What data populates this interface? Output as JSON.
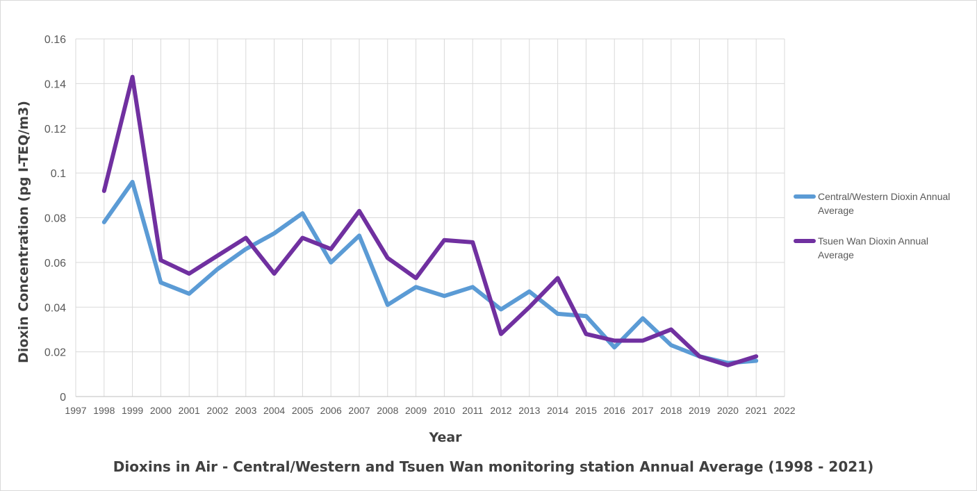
{
  "chart_data": {
    "type": "line",
    "title": "Dioxins in Air - Central/Western and Tsuen Wan monitoring station Annual Average (1998 - 2021)",
    "xlabel": "Year",
    "ylabel": "Dioxin Concentration (pg I-TEQ/m3)",
    "xlim": [
      1997,
      2022
    ],
    "ylim": [
      0,
      0.16
    ],
    "x_ticks": [
      "1997",
      "1998",
      "1999",
      "2000",
      "2001",
      "2002",
      "2003",
      "2004",
      "2005",
      "2006",
      "2007",
      "2008",
      "2009",
      "2010",
      "2011",
      "2012",
      "2013",
      "2014",
      "2015",
      "2016",
      "2017",
      "2018",
      "2019",
      "2020",
      "2021",
      "2022"
    ],
    "y_ticks": [
      "0",
      "0.02",
      "0.04",
      "0.06",
      "0.08",
      "0.1",
      "0.12",
      "0.14",
      "0.16"
    ],
    "grid": true,
    "legend_position": "right",
    "x": [
      1998,
      1999,
      2000,
      2001,
      2002,
      2003,
      2004,
      2005,
      2006,
      2007,
      2008,
      2009,
      2010,
      2011,
      2012,
      2013,
      2014,
      2015,
      2016,
      2017,
      2018,
      2019,
      2020,
      2021
    ],
    "series": [
      {
        "name": "Central/Western Dioxin Annual Average",
        "legend_lines": [
          "Central/Western Dioxin Annual",
          "Average"
        ],
        "color": "#5b9bd5",
        "values": [
          0.078,
          0.096,
          0.051,
          0.046,
          0.057,
          0.066,
          0.073,
          0.082,
          0.06,
          0.072,
          0.041,
          0.049,
          0.045,
          0.049,
          0.039,
          0.047,
          0.037,
          0.036,
          0.022,
          0.035,
          0.023,
          0.018,
          0.015,
          0.016
        ]
      },
      {
        "name": "Tsuen Wan Dioxin Annual Average",
        "legend_lines": [
          "Tsuen Wan Dioxin Annual",
          "Average"
        ],
        "color": "#7030a0",
        "values": [
          0.092,
          0.143,
          0.061,
          0.055,
          0.063,
          0.071,
          0.055,
          0.071,
          0.066,
          0.083,
          0.062,
          0.053,
          0.07,
          0.069,
          0.028,
          0.04,
          0.053,
          0.028,
          0.025,
          0.025,
          0.03,
          0.018,
          0.014,
          0.018
        ]
      }
    ]
  }
}
